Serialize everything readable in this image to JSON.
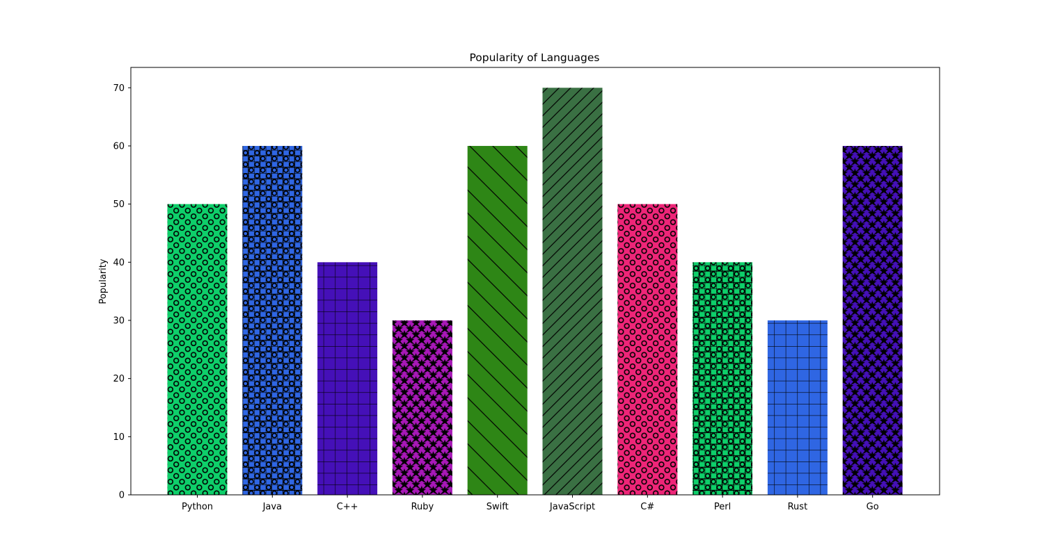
{
  "chart_data": {
    "type": "bar",
    "title": "Popularity of Languages",
    "xlabel": "",
    "ylabel": "Popularity",
    "ylim": [
      0,
      73.5
    ],
    "yticks": [
      0,
      10,
      20,
      30,
      40,
      50,
      60,
      70
    ],
    "grid": false,
    "categories": [
      "Python",
      "Java",
      "C++",
      "Ruby",
      "Swift",
      "JavaScript",
      "C#",
      "Perl",
      "Rust",
      "Go"
    ],
    "values": [
      50,
      60,
      40,
      30,
      60,
      70,
      50,
      40,
      30,
      60
    ],
    "colors": [
      "#0ecf6a",
      "#2f66e3",
      "#4510b8",
      "#a818b8",
      "#2e8616",
      "#3a7043",
      "#ee2578",
      "#0ecf6a",
      "#2f66e3",
      "#4510b8"
    ],
    "hatches": [
      "circles",
      "grid-circles",
      "grid",
      "stars-diamonds",
      "backslash",
      "slash",
      "circles",
      "grid-circles",
      "grid",
      "stars-diamonds"
    ]
  }
}
